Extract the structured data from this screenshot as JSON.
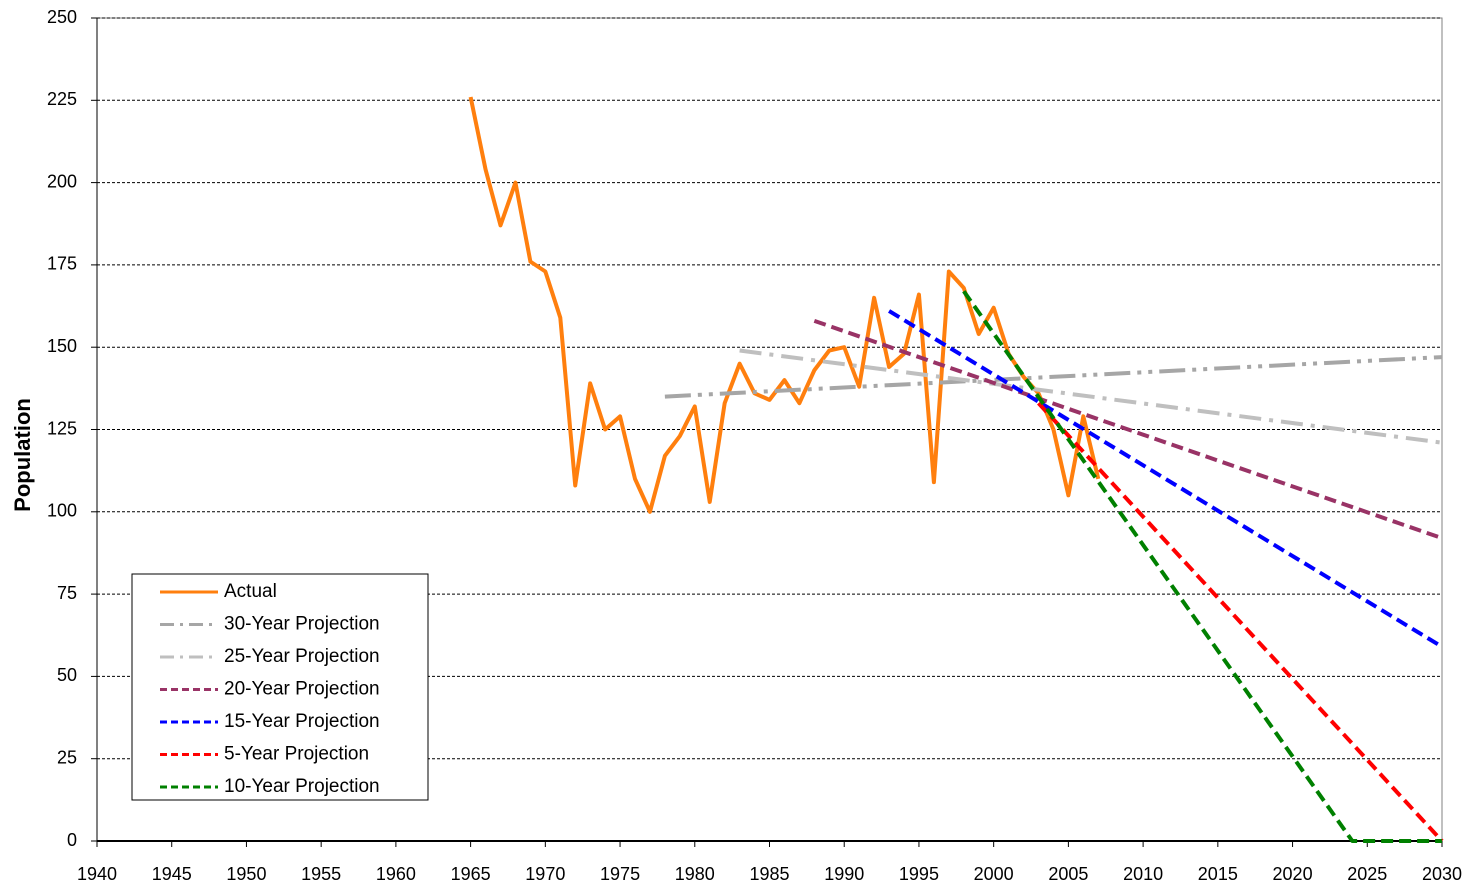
{
  "chart_data": {
    "type": "line",
    "ylabel": "Population",
    "xlim": [
      1940,
      2030
    ],
    "xticks": [
      1940,
      1945,
      1950,
      1955,
      1960,
      1965,
      1970,
      1975,
      1980,
      1985,
      1990,
      1995,
      2000,
      2005,
      2010,
      2015,
      2020,
      2025,
      2030
    ],
    "ylim": [
      0,
      250
    ],
    "yticks": [
      0,
      25,
      50,
      75,
      100,
      125,
      150,
      175,
      200,
      225,
      250
    ],
    "grid": true,
    "legend": "lower-left",
    "series": [
      {
        "name": "Actual",
        "color": "#ff7f0e",
        "dash": "solid",
        "x": [
          1965,
          1966,
          1967,
          1968,
          1969,
          1970,
          1971,
          1972,
          1973,
          1974,
          1975,
          1976,
          1977,
          1978,
          1979,
          1980,
          1981,
          1982,
          1983,
          1984,
          1985,
          1986,
          1987,
          1988,
          1989,
          1990,
          1991,
          1992,
          1993,
          1994,
          1995,
          1996,
          1997,
          1998,
          1999,
          2000,
          2001,
          2002,
          2003,
          2004,
          2005,
          2006,
          2007
        ],
        "values": [
          226,
          204,
          187,
          200,
          176,
          173,
          159,
          108,
          139,
          125,
          129,
          110,
          100,
          117,
          123,
          132,
          103,
          133,
          145,
          136,
          134,
          140,
          133,
          143,
          149,
          150,
          138,
          165,
          144,
          148,
          166,
          109,
          173,
          168,
          154,
          162,
          148,
          141,
          136,
          125,
          105,
          129,
          110
        ]
      },
      {
        "name": "30-Year Projection",
        "color": "#a6a6a6",
        "dash": "dash-dot-dot",
        "x": [
          1978,
          2030
        ],
        "values": [
          135,
          147
        ]
      },
      {
        "name": "25-Year Projection",
        "color": "#bfbfbf",
        "dash": "dash-dot",
        "x": [
          1983,
          2030
        ],
        "values": [
          149,
          121
        ]
      },
      {
        "name": "20-Year Projection",
        "color": "#993366",
        "dash": "dash",
        "x": [
          1988,
          2030
        ],
        "values": [
          158,
          92
        ]
      },
      {
        "name": "15-Year Projection",
        "color": "#0000ff",
        "dash": "dash",
        "x": [
          1993,
          2030
        ],
        "values": [
          161,
          59
        ]
      },
      {
        "name": "5-Year Projection",
        "color": "#ff0000",
        "dash": "dash",
        "x": [
          2003,
          2030
        ],
        "values": [
          133,
          0
        ]
      },
      {
        "name": "10-Year Projection",
        "color": "#008000",
        "dash": "dash",
        "x": [
          1998,
          2024,
          2030
        ],
        "values": [
          167,
          0,
          0
        ]
      }
    ]
  }
}
